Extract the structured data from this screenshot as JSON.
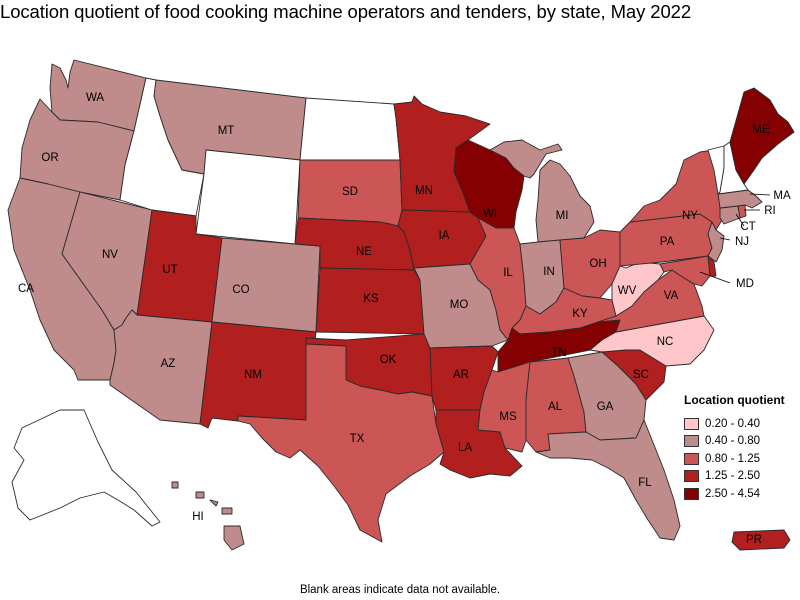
{
  "title": "Location quotient of food cooking machine operators and tenders, by state, May 2022",
  "footnote": "Blank areas indicate data not available.",
  "legend": {
    "title": "Location quotient",
    "items": [
      {
        "label": "0.20 - 0.40",
        "color": "#ffc7c9"
      },
      {
        "label": "0.40 - 0.80",
        "color": "#c08b8b"
      },
      {
        "label": "0.80 - 1.25",
        "color": "#cc5656"
      },
      {
        "label": "1.25 - 2.50",
        "color": "#b11f1f"
      },
      {
        "label": "2.50 - 4.54",
        "color": "#850000"
      }
    ]
  },
  "no_data_color": "#ffffff",
  "states": [
    {
      "code": "WA",
      "label": "WA",
      "class": 1
    },
    {
      "code": "OR",
      "label": "OR",
      "class": 1
    },
    {
      "code": "CA",
      "label": "CA",
      "class": 1
    },
    {
      "code": "NV",
      "label": "NV",
      "class": 1
    },
    {
      "code": "ID",
      "label": "",
      "class": null
    },
    {
      "code": "MT",
      "label": "MT",
      "class": 1
    },
    {
      "code": "WY",
      "label": "",
      "class": null
    },
    {
      "code": "UT",
      "label": "UT",
      "class": 3
    },
    {
      "code": "AZ",
      "label": "AZ",
      "class": 1
    },
    {
      "code": "CO",
      "label": "CO",
      "class": 1
    },
    {
      "code": "NM",
      "label": "NM",
      "class": 3
    },
    {
      "code": "ND",
      "label": "",
      "class": null
    },
    {
      "code": "SD",
      "label": "SD",
      "class": 2
    },
    {
      "code": "NE",
      "label": "NE",
      "class": 3
    },
    {
      "code": "KS",
      "label": "KS",
      "class": 3
    },
    {
      "code": "OK",
      "label": "OK",
      "class": 3
    },
    {
      "code": "TX",
      "label": "TX",
      "class": 2
    },
    {
      "code": "MN",
      "label": "MN",
      "class": 3
    },
    {
      "code": "IA",
      "label": "IA",
      "class": 3
    },
    {
      "code": "MO",
      "label": "MO",
      "class": 1
    },
    {
      "code": "AR",
      "label": "AR",
      "class": 3
    },
    {
      "code": "LA",
      "label": "LA",
      "class": 3
    },
    {
      "code": "WI",
      "label": "WI",
      "class": 4
    },
    {
      "code": "IL",
      "label": "IL",
      "class": 2
    },
    {
      "code": "MI",
      "label": "MI",
      "class": 1
    },
    {
      "code": "IN",
      "label": "IN",
      "class": 1
    },
    {
      "code": "OH",
      "label": "OH",
      "class": 2
    },
    {
      "code": "KY",
      "label": "KY",
      "class": 2
    },
    {
      "code": "TN",
      "label": "TN",
      "class": 4
    },
    {
      "code": "MS",
      "label": "MS",
      "class": 2
    },
    {
      "code": "AL",
      "label": "AL",
      "class": 2
    },
    {
      "code": "GA",
      "label": "GA",
      "class": 1
    },
    {
      "code": "FL",
      "label": "FL",
      "class": 1
    },
    {
      "code": "SC",
      "label": "SC",
      "class": 3
    },
    {
      "code": "NC",
      "label": "NC",
      "class": 0
    },
    {
      "code": "VA",
      "label": "VA",
      "class": 2
    },
    {
      "code": "WV",
      "label": "WV",
      "class": 0
    },
    {
      "code": "PA",
      "label": "PA",
      "class": 2
    },
    {
      "code": "NY",
      "label": "NY",
      "class": 2
    },
    {
      "code": "MD",
      "label": "MD",
      "class": 2
    },
    {
      "code": "DE",
      "label": "",
      "class": 3
    },
    {
      "code": "NJ",
      "label": "NJ",
      "class": 1
    },
    {
      "code": "CT",
      "label": "CT",
      "class": 1
    },
    {
      "code": "RI",
      "label": "RI",
      "class": 2
    },
    {
      "code": "MA",
      "label": "MA",
      "class": 1
    },
    {
      "code": "VT",
      "label": "",
      "class": null
    },
    {
      "code": "NH",
      "label": "",
      "class": null
    },
    {
      "code": "ME",
      "label": "ME",
      "class": 4
    },
    {
      "code": "AK",
      "label": "",
      "class": null
    },
    {
      "code": "HI",
      "label": "HI",
      "class": 1
    },
    {
      "code": "PR",
      "label": "PR",
      "class": 3
    }
  ]
}
